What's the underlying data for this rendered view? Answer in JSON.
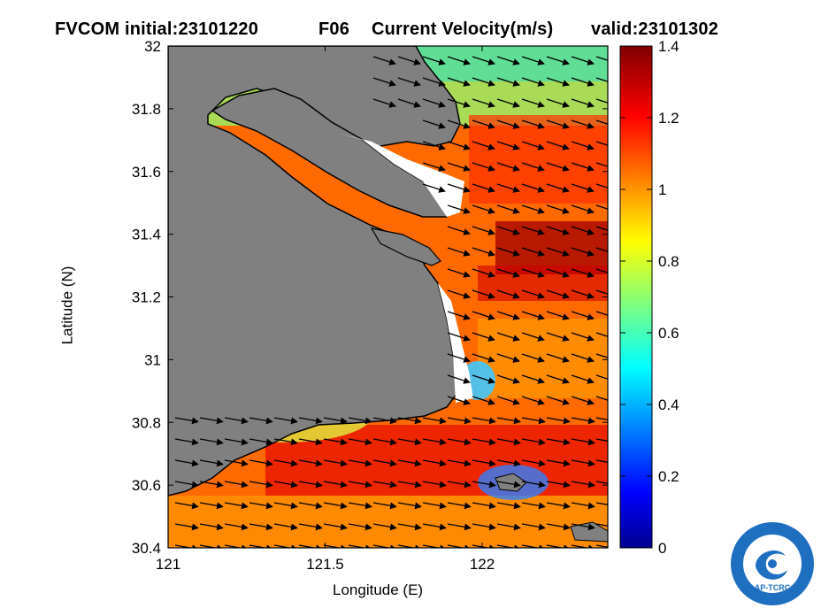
{
  "title": {
    "initial": "FVCOM initial:23101220",
    "forecast": "F06",
    "variable": "Current Velocity(m/s)",
    "valid": "valid:23101302"
  },
  "map": {
    "xlabel": "Longitude (E)",
    "ylabel": "Latitude (N)",
    "xlim": [
      121.0,
      122.4
    ],
    "ylim": [
      30.4,
      32.0
    ],
    "xticks": [
      {
        "value": 121.0,
        "label": "121"
      },
      {
        "value": 121.5,
        "label": "121.5"
      },
      {
        "value": 122.0,
        "label": "122"
      }
    ],
    "yticks": [
      {
        "value": 30.4,
        "label": "30.4"
      },
      {
        "value": 30.6,
        "label": "30.6"
      },
      {
        "value": 30.8,
        "label": "30.8"
      },
      {
        "value": 31.0,
        "label": "31"
      },
      {
        "value": 31.2,
        "label": "31.2"
      },
      {
        "value": 31.4,
        "label": "31.4"
      },
      {
        "value": 31.6,
        "label": "31.6"
      },
      {
        "value": 31.8,
        "label": "31.8"
      },
      {
        "value": 32.0,
        "label": "32"
      }
    ],
    "land_color": "#808080",
    "vector_color": "#000000"
  },
  "colorbar": {
    "min": 0,
    "max": 1.4,
    "unit": "m/s",
    "colormap": "jet",
    "ticks": [
      {
        "value": 0,
        "label": "0"
      },
      {
        "value": 0.2,
        "label": "0.2"
      },
      {
        "value": 0.4,
        "label": "0.4"
      },
      {
        "value": 0.6,
        "label": "0.6"
      },
      {
        "value": 0.8,
        "label": "0.8"
      },
      {
        "value": 1.0,
        "label": "1"
      },
      {
        "value": 1.2,
        "label": "1.2"
      },
      {
        "value": 1.4,
        "label": "1.4"
      }
    ]
  },
  "logo": {
    "text": "AP-TCRC",
    "icon": "typhoon-center-logo-icon",
    "color": "#1e6fc0"
  }
}
